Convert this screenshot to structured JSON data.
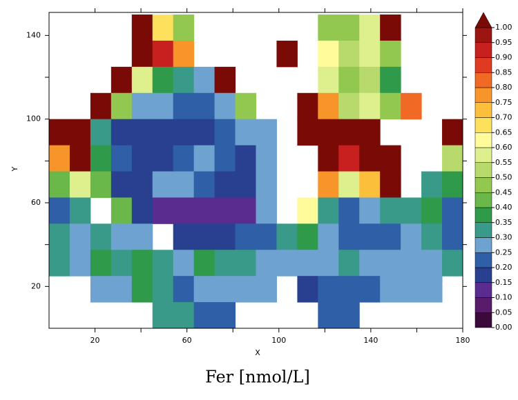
{
  "chart_data": {
    "type": "heatmap",
    "title": "Fer [nmol/L]",
    "xlabel": "X",
    "ylabel": "Y",
    "xlim": [
      0,
      180
    ],
    "ylim": [
      0,
      151
    ],
    "xticks": [
      20,
      60,
      100,
      140,
      180
    ],
    "yticks": [
      20,
      60,
      100,
      140
    ],
    "xminorticks": [
      40,
      80,
      120,
      160
    ],
    "yminorticks": [
      40,
      80,
      120
    ],
    "x": [
      4.5,
      13.5,
      22.5,
      31.5,
      40.5,
      49.5,
      58.5,
      67.5,
      76.5,
      85.5,
      94.5,
      103.5,
      112.5,
      121.5,
      130.5,
      139.5,
      148.5,
      157.5,
      166.5,
      175.5
    ],
    "y": [
      143.75,
      131.25,
      118.75,
      106.25,
      93.75,
      81.25,
      68.75,
      56.25,
      43.75,
      31.25,
      18.75,
      6.25
    ],
    "values": [
      [
        null,
        null,
        null,
        null,
        1.05,
        0.65,
        0.45,
        null,
        null,
        null,
        null,
        null,
        null,
        0.45,
        0.45,
        0.55,
        1.05,
        null,
        null,
        null
      ],
      [
        null,
        null,
        null,
        null,
        1.05,
        0.9,
        0.75,
        null,
        null,
        null,
        null,
        1.05,
        null,
        0.6,
        0.5,
        0.55,
        0.45,
        null,
        null,
        null
      ],
      [
        null,
        null,
        null,
        1.05,
        0.55,
        0.35,
        0.3,
        0.25,
        1.05,
        null,
        null,
        null,
        null,
        0.55,
        0.45,
        0.5,
        0.35,
        null,
        null,
        null
      ],
      [
        null,
        null,
        1.05,
        0.45,
        0.25,
        0.25,
        0.2,
        0.2,
        0.25,
        0.45,
        null,
        null,
        1.05,
        0.75,
        0.5,
        0.55,
        0.45,
        0.8,
        null,
        null
      ],
      [
        1.05,
        1.05,
        0.3,
        0.15,
        0.15,
        0.15,
        0.15,
        0.15,
        0.2,
        0.25,
        0.25,
        null,
        1.05,
        1.05,
        1.05,
        1.05,
        null,
        null,
        null,
        1.05
      ],
      [
        0.75,
        1.05,
        0.35,
        0.2,
        0.15,
        0.15,
        0.2,
        0.25,
        0.2,
        0.15,
        0.25,
        null,
        null,
        1.05,
        0.9,
        1.05,
        1.05,
        null,
        null,
        0.5
      ],
      [
        0.4,
        0.55,
        0.4,
        0.15,
        0.15,
        0.25,
        0.25,
        0.2,
        0.15,
        0.15,
        0.25,
        null,
        null,
        0.75,
        0.55,
        0.7,
        1.05,
        null,
        0.3,
        0.35
      ],
      [
        0.2,
        0.3,
        null,
        0.4,
        0.15,
        0.1,
        0.1,
        0.1,
        0.1,
        0.1,
        0.25,
        null,
        0.6,
        0.3,
        0.2,
        0.25,
        0.3,
        0.3,
        0.35,
        0.2
      ],
      [
        0.3,
        0.25,
        0.3,
        0.25,
        0.25,
        null,
        0.15,
        0.15,
        0.15,
        0.2,
        0.2,
        0.3,
        0.35,
        0.25,
        0.2,
        0.2,
        0.2,
        0.25,
        0.3,
        0.2
      ],
      [
        0.3,
        0.25,
        0.35,
        0.3,
        0.35,
        0.3,
        0.25,
        0.35,
        0.3,
        0.3,
        0.25,
        0.25,
        0.25,
        0.25,
        0.3,
        0.25,
        0.25,
        0.25,
        0.25,
        0.3
      ],
      [
        null,
        null,
        0.25,
        0.25,
        0.35,
        0.3,
        0.2,
        0.25,
        0.25,
        0.25,
        0.25,
        null,
        0.15,
        0.2,
        0.2,
        0.2,
        0.25,
        0.25,
        0.25,
        null
      ],
      [
        null,
        null,
        null,
        null,
        null,
        0.3,
        0.3,
        0.2,
        0.2,
        null,
        null,
        null,
        null,
        0.2,
        0.2,
        null,
        null,
        null,
        null,
        null
      ]
    ],
    "colorbar": {
      "ticks": [
        {
          "value": 0,
          "label": "0.00"
        },
        {
          "value": 0.05,
          "label": "0.05"
        },
        {
          "value": 0.1,
          "label": "0.10"
        },
        {
          "value": 0.15,
          "label": "0.15"
        },
        {
          "value": 0.2,
          "label": "0.20"
        },
        {
          "value": 0.25,
          "label": "0.25"
        },
        {
          "value": 0.3,
          "label": "0.30"
        },
        {
          "value": 0.35,
          "label": "0.35"
        },
        {
          "value": 0.4,
          "label": "0.40"
        },
        {
          "value": 0.45,
          "label": "0.45"
        },
        {
          "value": 0.5,
          "label": "0.50"
        },
        {
          "value": 0.55,
          "label": "0.55"
        },
        {
          "value": 0.6,
          "label": "0.60"
        },
        {
          "value": 0.65,
          "label": "0.65"
        },
        {
          "value": 0.7,
          "label": "0.70"
        },
        {
          "value": 0.75,
          "label": "0.75"
        },
        {
          "value": 0.8,
          "label": "0.80"
        },
        {
          "value": 0.85,
          "label": "0.85"
        },
        {
          "value": 0.9,
          "label": "0.90"
        },
        {
          "value": 0.95,
          "label": "0.95"
        },
        {
          "value": 1,
          "label": "1.00"
        }
      ],
      "colors": [
        "#3b0a3b",
        "#581c6a",
        "#5b2c8f",
        "#28408f",
        "#2f5fa6",
        "#6ea2d0",
        "#3a9a8a",
        "#2e9a4a",
        "#6ab84a",
        "#92c850",
        "#b8da6c",
        "#def08e",
        "#fffa9a",
        "#fde15c",
        "#fbbf3c",
        "#f7952b",
        "#f06a25",
        "#e03a22",
        "#c8201e",
        "#9c1510"
      ],
      "extend_color": "#7a0a06"
    }
  }
}
